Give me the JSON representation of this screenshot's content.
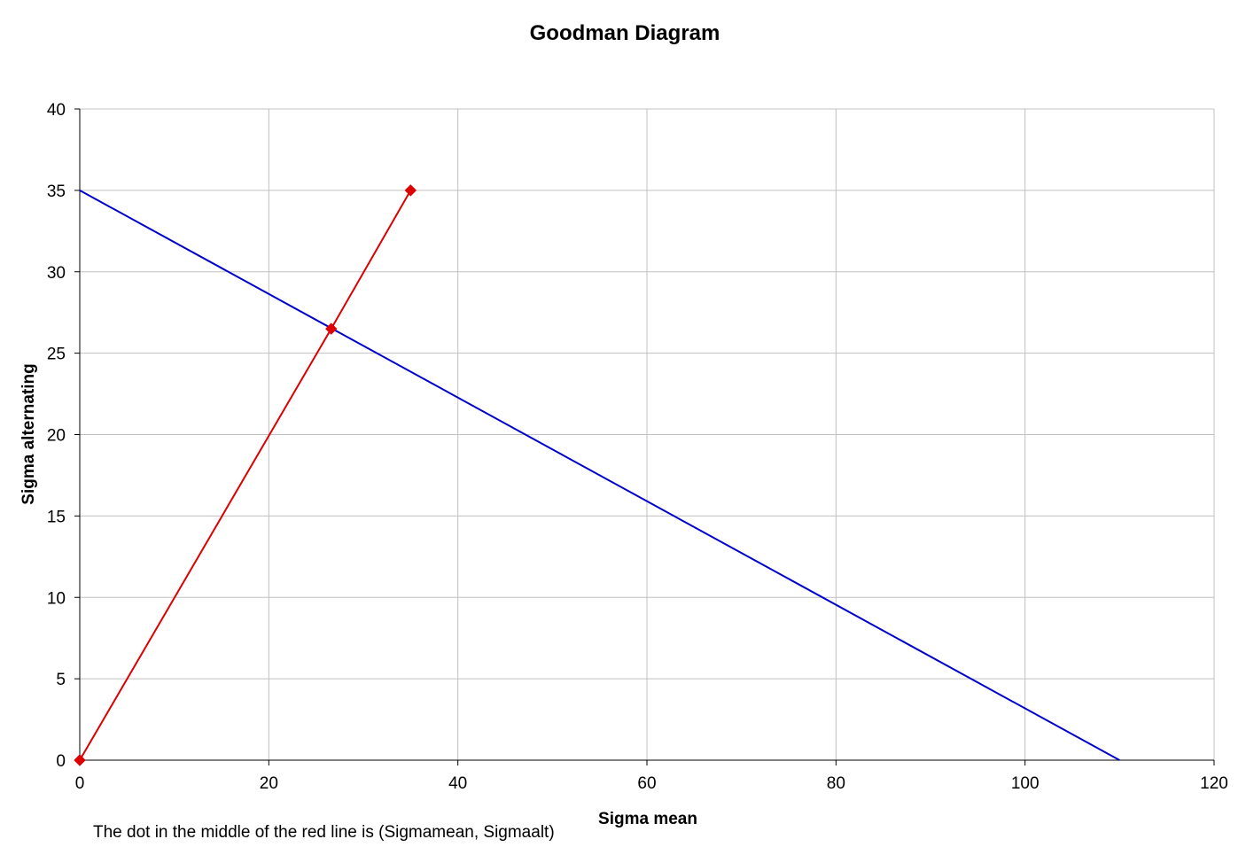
{
  "chart_data": {
    "type": "line",
    "title": "Goodman  Diagram",
    "xlabel": "Sigma mean",
    "ylabel": "Sigma alternating",
    "xlim": [
      0,
      120
    ],
    "ylim": [
      0,
      40
    ],
    "x_ticks": [
      0,
      20,
      40,
      60,
      80,
      100,
      120
    ],
    "y_ticks": [
      0,
      5,
      10,
      15,
      20,
      25,
      30,
      35,
      40
    ],
    "x_tick_labels": [
      "0",
      "20",
      "40",
      "60",
      "80",
      "100",
      "120"
    ],
    "y_tick_labels": [
      "0",
      "5",
      "10",
      "15",
      "20",
      "25",
      "30",
      "35",
      "40"
    ],
    "grid": true,
    "series": [
      {
        "color": "#0000cc",
        "marker": "none",
        "points": [
          {
            "x": 0,
            "y": 35
          },
          {
            "x": 110,
            "y": 0
          }
        ]
      },
      {
        "color": "#dd0000",
        "marker": "diamond",
        "points": [
          {
            "x": 0,
            "y": 0
          },
          {
            "x": 26.6,
            "y": 26.5
          },
          {
            "x": 35,
            "y": 35
          }
        ]
      }
    ],
    "note": "The dot in the middle of the red line is (Sigmamean,  Sigmaalt)"
  }
}
